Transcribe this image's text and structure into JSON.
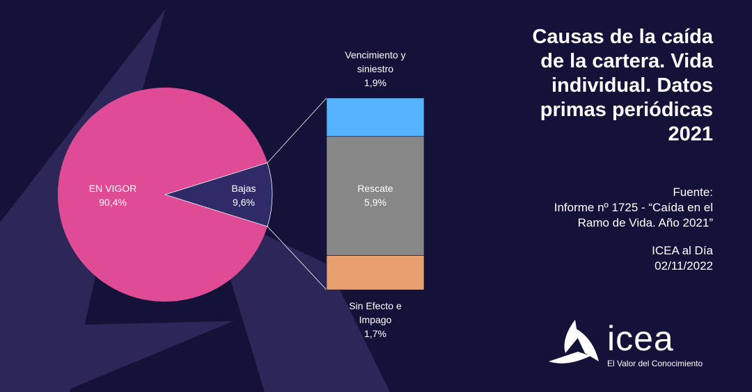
{
  "title": "Causas de la caída de la cartera. Vida individual. Datos primas periódicas 2021",
  "title_lines": [
    "Causas de la caída",
    "de la cartera. Vida",
    "individual. Datos",
    "primas periódicas",
    "2021"
  ],
  "source": {
    "label": "Fuente:",
    "line1": "Informe nº 1725 - “Caída en el",
    "line2": "Ramo de Vida. Año 2021”",
    "publication": "ICEA al Día",
    "date": "02/11/2022"
  },
  "logo": {
    "name": "icea",
    "tagline": "El Valor del Conocimiento"
  },
  "colors": {
    "background": "#15123a",
    "decor": "#2c2758",
    "en_vigor": "#df4b94",
    "bajas": "#2e2b68",
    "vencimiento": "#56b3ff",
    "rescate": "#878787",
    "sin_efecto": "#e8a070"
  },
  "chart_data": {
    "type": "pie",
    "pie": {
      "slices": [
        {
          "label": "EN VIGOR",
          "value": 90.4,
          "display": "90,4%"
        },
        {
          "label": "Bajas",
          "value": 9.6,
          "display": "9,6%"
        }
      ]
    },
    "breakdown": {
      "type": "stacked-bar",
      "of": "Bajas",
      "segments": [
        {
          "label": "Vencimiento y siniestro",
          "label_lines": [
            "Vencimiento y",
            "siniestro"
          ],
          "value": 1.9,
          "display": "1,9%"
        },
        {
          "label": "Rescate",
          "label_lines": [
            "Rescate"
          ],
          "value": 5.9,
          "display": "5,9%"
        },
        {
          "label": "Sin Efecto e Impago",
          "label_lines": [
            "Sin Efecto e",
            "Impago"
          ],
          "value": 1.7,
          "display": "1,7%"
        }
      ]
    }
  }
}
